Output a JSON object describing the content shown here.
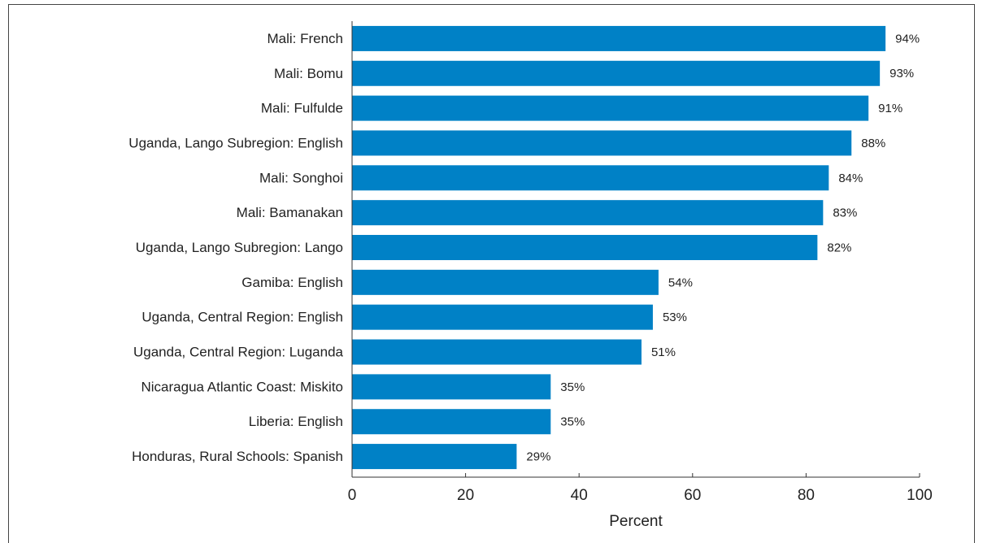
{
  "chart_data": {
    "type": "bar",
    "orientation": "horizontal",
    "categories": [
      "Mali: French",
      "Mali: Bomu",
      "Mali: Fulfulde",
      "Uganda, Lango Subregion: English",
      "Mali: Songhoi",
      "Mali: Bamanakan",
      "Uganda, Lango Subregion: Lango",
      "Gamiba: English",
      "Uganda, Central Region: English",
      "Uganda, Central Region: Luganda",
      "Nicaragua Atlantic Coast: Miskito",
      "Liberia: English",
      "Honduras, Rural Schools: Spanish"
    ],
    "values": [
      94,
      93,
      91,
      88,
      84,
      83,
      82,
      54,
      53,
      51,
      35,
      35,
      29
    ],
    "value_labels": [
      "94%",
      "93%",
      "91%",
      "88%",
      "84%",
      "83%",
      "82%",
      "54%",
      "53%",
      "51%",
      "35%",
      "35%",
      "29%"
    ],
    "color": "#0081c6",
    "xlim": [
      0,
      100
    ],
    "xticks": [
      0,
      20,
      40,
      60,
      80,
      100
    ],
    "xlabel": "Percent"
  }
}
